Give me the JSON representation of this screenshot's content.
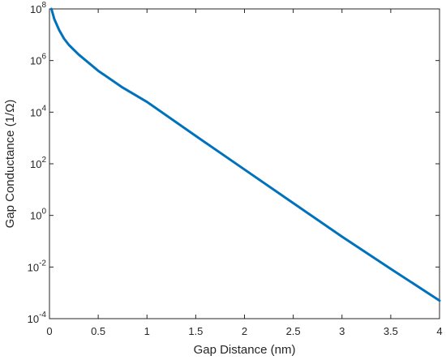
{
  "chart_data": {
    "type": "line",
    "title": "",
    "xlabel": "Gap Distance (nm)",
    "ylabel": "Gap Conductance (1/Ω)",
    "xscale": "linear",
    "yscale": "log",
    "xlim": [
      0,
      4
    ],
    "ylim": [
      0.0001,
      100000000
    ],
    "grid": false,
    "box": true,
    "x_ticks": [
      {
        "value": 0,
        "label": "0"
      },
      {
        "value": 0.5,
        "label": "0.5"
      },
      {
        "value": 1,
        "label": "1"
      },
      {
        "value": 1.5,
        "label": "1.5"
      },
      {
        "value": 2,
        "label": "2"
      },
      {
        "value": 2.5,
        "label": "2.5"
      },
      {
        "value": 3,
        "label": "3"
      },
      {
        "value": 3.5,
        "label": "3.5"
      },
      {
        "value": 4,
        "label": "4"
      }
    ],
    "y_ticks": [
      {
        "value": 0.0001,
        "base": "10",
        "exp": "-4"
      },
      {
        "value": 0.01,
        "base": "10",
        "exp": "-2"
      },
      {
        "value": 1,
        "base": "10",
        "exp": "0"
      },
      {
        "value": 100,
        "base": "10",
        "exp": "2"
      },
      {
        "value": 10000,
        "base": "10",
        "exp": "4"
      },
      {
        "value": 1000000,
        "base": "10",
        "exp": "6"
      },
      {
        "value": 100000000,
        "base": "10",
        "exp": "8"
      }
    ],
    "series": [
      {
        "color": "#0072BD",
        "x": [
          0.02,
          0.05,
          0.1,
          0.15,
          0.2,
          0.3,
          0.5,
          0.75,
          1.0,
          1.5,
          2.0,
          2.5,
          3.0,
          3.5,
          4.0
        ],
        "y": [
          100000000,
          40000000,
          15000000,
          7000000,
          4000000,
          1700000,
          400000,
          90000,
          25000,
          1200,
          60,
          3,
          0.15,
          0.0085,
          0.0005
        ]
      }
    ]
  }
}
